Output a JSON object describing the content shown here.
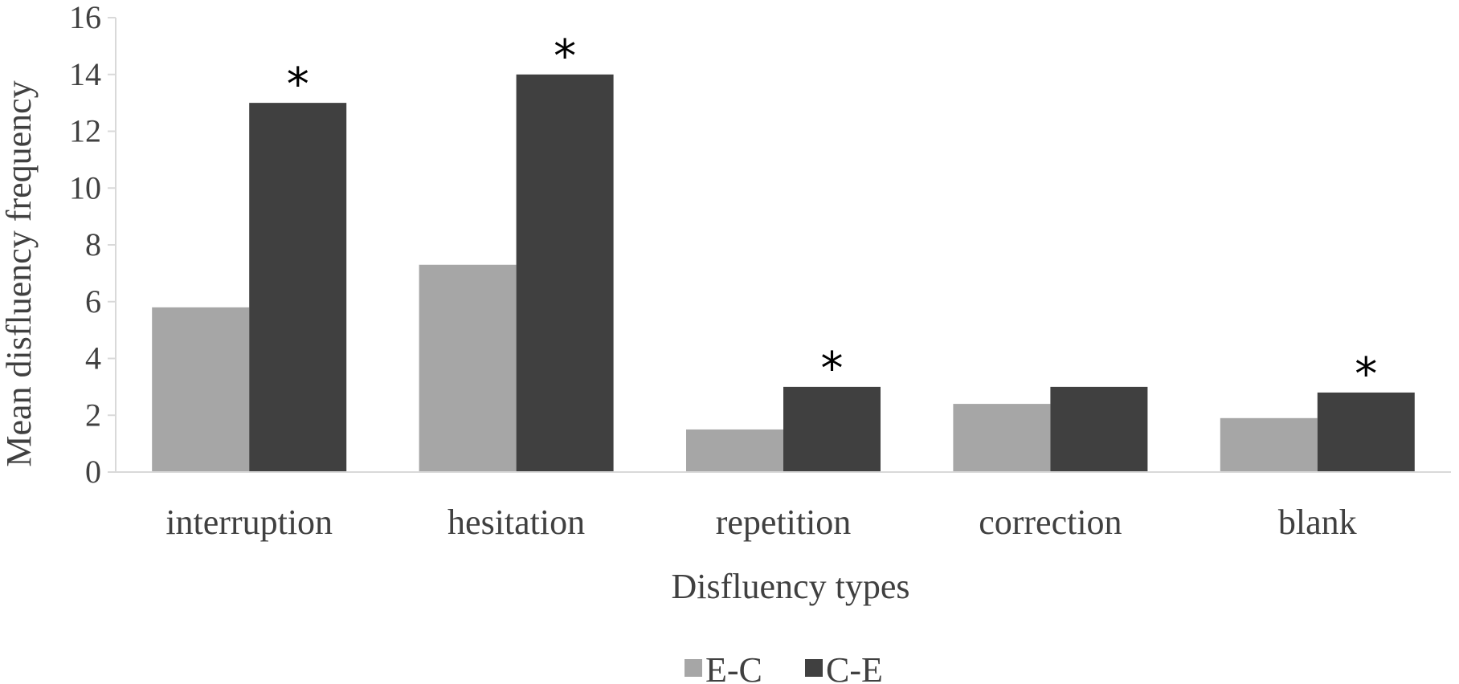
{
  "chart_data": {
    "type": "bar",
    "title": "",
    "xlabel": "Disfluency types",
    "ylabel": "Mean disfluency frequency",
    "categories": [
      "interruption",
      "hesitation",
      "repetition",
      "correction",
      "blank"
    ],
    "series": [
      {
        "name": "E-C",
        "values": [
          5.8,
          7.3,
          1.5,
          2.4,
          1.9
        ],
        "color": "#a6a6a6"
      },
      {
        "name": "C-E",
        "values": [
          13.0,
          14.0,
          3.0,
          3.0,
          2.8
        ],
        "color": "#404040"
      }
    ],
    "significance": {
      "symbol": "*",
      "marked": [
        true,
        true,
        true,
        false,
        true
      ]
    },
    "ylim": [
      0,
      16
    ],
    "yticks": [
      0,
      2,
      4,
      6,
      8,
      10,
      12,
      14,
      16
    ],
    "grid": false,
    "legend": "bottom-center"
  }
}
